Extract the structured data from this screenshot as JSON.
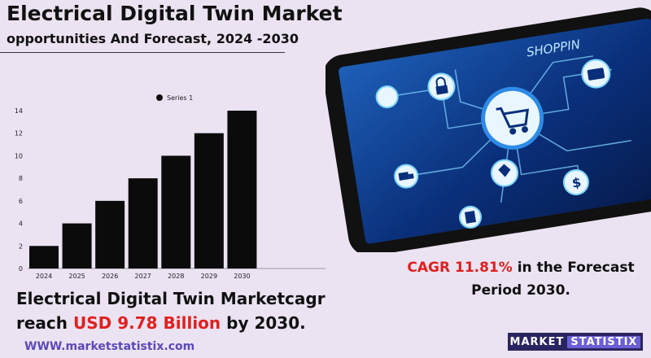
{
  "header": {
    "title": "Electrical Digital Twin Market",
    "subtitle": "opportunities And Forecast, 2024 -2030"
  },
  "chart_data": {
    "type": "bar",
    "categories": [
      "2024",
      "2025",
      "2026",
      "2027",
      "2028",
      "2029",
      "2030"
    ],
    "series": [
      {
        "name": "Series 1",
        "values": [
          2,
          4,
          6,
          8,
          10,
          12,
          14
        ]
      }
    ],
    "ylim": [
      0,
      14
    ],
    "yticks": [
      0,
      2,
      4,
      6,
      8,
      10,
      12,
      14
    ],
    "legend": "top-center",
    "grid": false,
    "bar_color": "#0b0b0b"
  },
  "headline": {
    "line1": "Electrical Digital Twin Marketcagr",
    "reach": "reach",
    "value": "USD  9.78 Billion",
    "suffix": "by 2030."
  },
  "cagr": {
    "value": "CAGR  11.81%",
    "rest": "in the  Forecast",
    "line2": "Period  2030."
  },
  "website": "WWW.marketstatistix.com",
  "logo": "MARKET STATISTIX",
  "image": {
    "shop_text": "SHOPPIN",
    "icons": [
      "cart-icon",
      "lock-icon",
      "hand-icon",
      "card-icon",
      "truck-icon",
      "tag-icon",
      "dollar-icon",
      "calculator-icon"
    ]
  },
  "colors": {
    "accent_red": "#e0201e",
    "brand_navy": "#2a2560",
    "link_purple": "#5b49b8",
    "background": "#ece3f2"
  }
}
